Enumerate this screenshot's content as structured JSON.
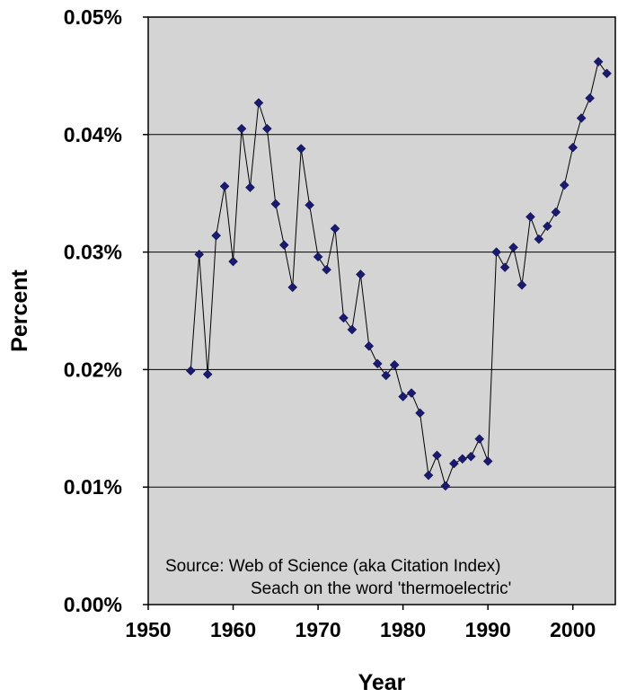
{
  "chart_data": {
    "type": "line",
    "title": "",
    "xlabel": "Year",
    "ylabel": "Percent",
    "xlim": [
      1950,
      2005
    ],
    "ylim": [
      0.0,
      0.05
    ],
    "xticks": [
      1950,
      1960,
      1970,
      1980,
      1990,
      2000
    ],
    "xtick_labels": [
      "1950",
      "1960",
      "1970",
      "1980",
      "1990",
      "2000"
    ],
    "yticks": [
      0.0,
      0.01,
      0.02,
      0.03,
      0.04,
      0.05
    ],
    "ytick_labels": [
      "0.00%",
      "0.01%",
      "0.02%",
      "0.03%",
      "0.04%",
      "0.05%"
    ],
    "grid": "horizontal",
    "annotation": [
      "Source:  Web of Science (aka Citation Index)",
      "Seach on the word 'thermoelectric'"
    ],
    "colors": {
      "plot_background": "#d4d4d4",
      "series": "#1a1a6e",
      "line": "#000000"
    },
    "series": [
      {
        "x": [
          1955,
          1956,
          1957,
          1958,
          1959,
          1960,
          1961,
          1962,
          1963,
          1964,
          1965,
          1966,
          1967,
          1968,
          1969,
          1970,
          1971,
          1972,
          1973,
          1974,
          1975,
          1976,
          1977,
          1978,
          1979,
          1980,
          1981,
          1982,
          1983,
          1984,
          1985,
          1986,
          1987,
          1988,
          1989,
          1990,
          1991,
          1992,
          1993,
          1994,
          1995,
          1996,
          1997,
          1998,
          1999,
          2000,
          2001,
          2002,
          2003,
          2004
        ],
        "values": [
          0.0199,
          0.0298,
          0.0196,
          0.0314,
          0.0356,
          0.0292,
          0.0405,
          0.0355,
          0.0427,
          0.0405,
          0.0341,
          0.0306,
          0.027,
          0.0388,
          0.034,
          0.0296,
          0.0285,
          0.032,
          0.0244,
          0.0234,
          0.0281,
          0.022,
          0.0205,
          0.0195,
          0.0204,
          0.0177,
          0.018,
          0.0163,
          0.011,
          0.0127,
          0.0101,
          0.012,
          0.0124,
          0.0126,
          0.0141,
          0.0122,
          0.03,
          0.0287,
          0.0304,
          0.0272,
          0.033,
          0.0311,
          0.0322,
          0.0334,
          0.0357,
          0.0389,
          0.0414,
          0.0431,
          0.0462,
          0.0452
        ]
      }
    ]
  }
}
